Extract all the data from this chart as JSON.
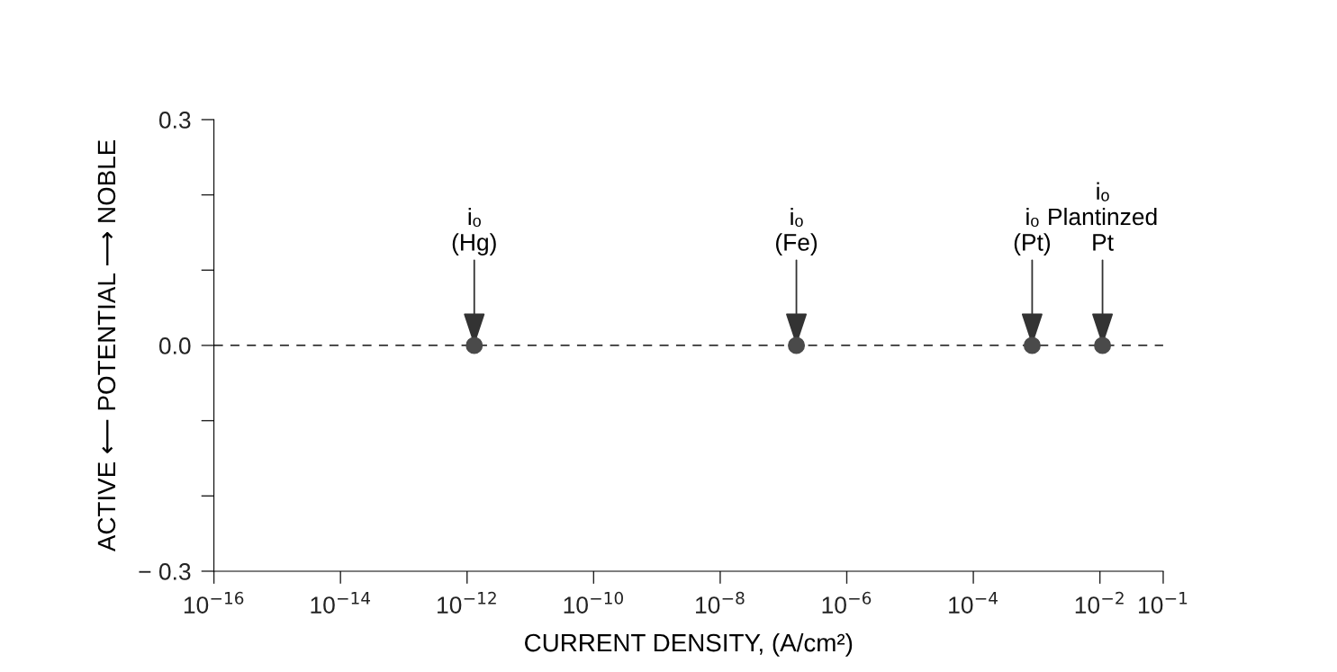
{
  "chart_data": {
    "type": "scatter",
    "xlabel": "CURRENT DENSITY, (A/cm²)",
    "ylabel": "ACTIVE ⟵ POTENTIAL ⟶ NOBLE",
    "x": [
      1.3e-12,
      1.6e-07,
      0.00085,
      0.011
    ],
    "series": [
      {
        "color": "#4a4a4a",
        "values": [
          0,
          0,
          0,
          0
        ]
      }
    ],
    "log": "x",
    "marker": "circle",
    "xlim": [
      1e-16,
      0.1
    ],
    "xticks": [
      {
        "value": 1e-16,
        "label": "10$^{−16}$"
      },
      {
        "value": 1e-14,
        "label": "10$^{−14}$"
      },
      {
        "value": 1e-12,
        "label": "10$^{−12}$"
      },
      {
        "value": 1e-10,
        "label": "10$^{−10}$"
      },
      {
        "value": 1e-08,
        "label": "10$^{−8}$"
      },
      {
        "value": 1e-06,
        "label": "10$^{−6}$"
      },
      {
        "value": 0.0001,
        "label": "10$^{−4}$"
      },
      {
        "value": 0.01,
        "label": "10$^{−2}$"
      },
      {
        "value": 0.1,
        "label": "10$^{−1}$"
      }
    ],
    "ylim": [
      -0.3,
      0.3
    ],
    "yticks": [
      {
        "value": -0.3,
        "label": "− 0.3"
      },
      {
        "value": -0.2,
        "label": null
      },
      {
        "value": -0.1,
        "label": null
      },
      {
        "value": 0.0,
        "label": "0.0"
      },
      {
        "value": 0.1,
        "label": null
      },
      {
        "value": 0.2,
        "label": null
      },
      {
        "value": 0.3,
        "label": "0.3"
      }
    ],
    "ref_lines": [
      {
        "axis": "y",
        "value": 0,
        "label": null,
        "color": "#333333",
        "line_style": "dashed"
      }
    ],
    "annotations": [
      {
        "text": "iₒ\n(Hg)",
        "x": 1.3e-12,
        "y": 0
      },
      {
        "text": "iₒ\n(Fe)",
        "x": 1.6e-07,
        "y": 0
      },
      {
        "text": "iₒ\n(Pt)",
        "x": 0.00085,
        "y": 0
      },
      {
        "text": "iₒ\nPlantinzed\nPt",
        "x": 0.011,
        "y": 0
      }
    ],
    "grid": false,
    "legend": false
  }
}
